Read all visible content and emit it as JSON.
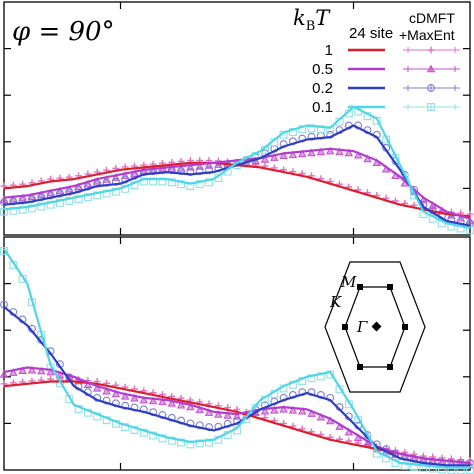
{
  "panel_title": "φ = 90°",
  "legend": {
    "temperature_header": "k",
    "temperature_header_sub": "B",
    "temperature_header_var": "T",
    "col_24site": "24 site",
    "col_cdmft_line1": "cDMFT",
    "col_cdmft_line2": "+MaxEnt",
    "temperatures": [
      "1",
      "0.5",
      "0.2",
      "0.1"
    ]
  },
  "inset": {
    "label_M": "M",
    "label_K": "K",
    "label_Gamma": "Γ"
  },
  "colors": {
    "T1": "#dd1c2c",
    "T05": "#b23dcc",
    "T02": "#2e3fc4",
    "T01": "#4fd6e6",
    "T1_marker": "#e070c0",
    "T05_marker": "#c64fd0",
    "T02_marker": "#7f7fcf",
    "T01_marker": "#8fe0e6"
  },
  "chart_data": [
    {
      "type": "line",
      "panel": "top",
      "title": "φ = 90°",
      "xlim": [
        0,
        1
      ],
      "ylim": [
        0,
        1
      ],
      "x": [
        0.0,
        0.05,
        0.1,
        0.15,
        0.2,
        0.25,
        0.3,
        0.35,
        0.4,
        0.45,
        0.5,
        0.55,
        0.6,
        0.65,
        0.7,
        0.75,
        0.8,
        0.85,
        0.9,
        0.95,
        1.0
      ],
      "series": [
        {
          "name": "1",
          "values": [
            0.2,
            0.21,
            0.23,
            0.24,
            0.26,
            0.28,
            0.29,
            0.3,
            0.31,
            0.31,
            0.3,
            0.29,
            0.27,
            0.25,
            0.22,
            0.19,
            0.16,
            0.13,
            0.11,
            0.09,
            0.08
          ]
        },
        {
          "name": "0.5",
          "values": [
            0.16,
            0.17,
            0.19,
            0.21,
            0.24,
            0.26,
            0.28,
            0.29,
            0.3,
            0.31,
            0.32,
            0.33,
            0.35,
            0.36,
            0.37,
            0.36,
            0.32,
            0.25,
            0.16,
            0.1,
            0.07
          ]
        },
        {
          "name": "0.2",
          "values": [
            0.13,
            0.14,
            0.16,
            0.18,
            0.21,
            0.22,
            0.26,
            0.27,
            0.26,
            0.27,
            0.3,
            0.33,
            0.38,
            0.41,
            0.42,
            0.47,
            0.42,
            0.28,
            0.12,
            0.06,
            0.04
          ]
        },
        {
          "name": "0.1",
          "values": [
            0.11,
            0.12,
            0.14,
            0.16,
            0.18,
            0.2,
            0.24,
            0.24,
            0.22,
            0.24,
            0.31,
            0.36,
            0.44,
            0.47,
            0.46,
            0.55,
            0.5,
            0.3,
            0.1,
            0.05,
            0.03
          ]
        }
      ]
    },
    {
      "type": "line",
      "panel": "bottom",
      "xlim": [
        0,
        1
      ],
      "ylim": [
        0,
        1
      ],
      "x": [
        0.0,
        0.05,
        0.1,
        0.15,
        0.2,
        0.25,
        0.3,
        0.35,
        0.4,
        0.45,
        0.5,
        0.55,
        0.6,
        0.65,
        0.7,
        0.75,
        0.8,
        0.85,
        0.9,
        0.95,
        1.0
      ],
      "series": [
        {
          "name": "1",
          "values": [
            0.36,
            0.37,
            0.38,
            0.38,
            0.37,
            0.35,
            0.33,
            0.31,
            0.29,
            0.27,
            0.25,
            0.22,
            0.19,
            0.16,
            0.13,
            0.11,
            0.09,
            0.07,
            0.05,
            0.04,
            0.03
          ]
        },
        {
          "name": "0.5",
          "values": [
            0.42,
            0.44,
            0.43,
            0.4,
            0.36,
            0.33,
            0.31,
            0.3,
            0.28,
            0.25,
            0.24,
            0.26,
            0.27,
            0.26,
            0.22,
            0.16,
            0.1,
            0.07,
            0.05,
            0.04,
            0.03
          ]
        },
        {
          "name": "0.2",
          "values": [
            0.7,
            0.62,
            0.5,
            0.36,
            0.3,
            0.27,
            0.25,
            0.22,
            0.19,
            0.17,
            0.2,
            0.26,
            0.3,
            0.33,
            0.3,
            0.2,
            0.1,
            0.05,
            0.03,
            0.02,
            0.02
          ]
        },
        {
          "name": "0.1",
          "values": [
            0.95,
            0.8,
            0.45,
            0.28,
            0.24,
            0.2,
            0.17,
            0.14,
            0.12,
            0.13,
            0.18,
            0.3,
            0.36,
            0.4,
            0.42,
            0.26,
            0.08,
            0.03,
            0.02,
            0.01,
            0.01
          ]
        }
      ]
    }
  ]
}
